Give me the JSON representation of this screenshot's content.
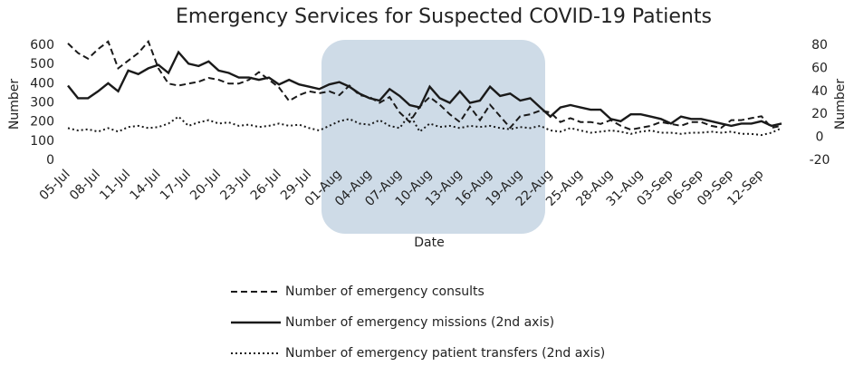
{
  "chart_data": {
    "type": "line",
    "title": "Emergency Services for Suspected COVID-19 Patients",
    "x_label": "Date",
    "y_label": "Number",
    "y2_label": "Number",
    "categories": [
      "05-Jul",
      null,
      null,
      "08-Jul",
      null,
      null,
      "11-Jul",
      null,
      null,
      "14-Jul",
      null,
      null,
      "17-Jul",
      null,
      null,
      "20-Jul",
      null,
      null,
      "23-Jul",
      null,
      null,
      "26-Jul",
      null,
      null,
      "29-Jul",
      null,
      null,
      "01-Aug",
      null,
      null,
      "04-Aug",
      null,
      null,
      "07-Aug",
      null,
      null,
      "10-Aug",
      null,
      null,
      "13-Aug",
      null,
      null,
      "16-Aug",
      null,
      null,
      "19-Aug",
      null,
      null,
      "22-Aug",
      null,
      null,
      "25-Aug",
      null,
      null,
      "28-Aug",
      null,
      null,
      "31-Aug",
      null,
      null,
      "03-Sep",
      null,
      null,
      "06-Sep",
      null,
      null,
      "09-Sep",
      null,
      null,
      "12-Sep",
      null,
      null
    ],
    "ylim": [
      0,
      600
    ],
    "yticks": [
      0,
      100,
      200,
      300,
      400,
      500,
      600
    ],
    "y2lim": [
      -20,
      80
    ],
    "y2ticks": [
      -20,
      0,
      20,
      40,
      60,
      80
    ],
    "series": [
      {
        "name": "Number of emergency consults",
        "color": "#1a1a1a",
        "style": "dashed",
        "values": [
          610,
          560,
          530,
          580,
          620,
          480,
          520,
          560,
          620,
          480,
          400,
          390,
          400,
          410,
          430,
          420,
          400,
          400,
          420,
          460,
          420,
          380,
          310,
          340,
          360,
          350,
          360,
          340,
          390,
          340,
          330,
          300,
          330,
          250,
          200,
          280,
          330,
          290,
          240,
          200,
          280,
          210,
          290,
          230,
          170,
          230,
          240,
          260,
          250,
          200,
          220,
          200,
          200,
          190,
          210,
          180,
          160,
          170,
          180,
          200,
          190,
          180,
          200,
          200,
          180,
          170,
          210,
          210,
          220,
          230,
          170,
          180
        ]
      },
      {
        "name": "Number of emergency missions (2nd axis)",
        "color": "#1a1a1a",
        "style": "solid",
        "axis": "y2",
        "values": [
          45,
          34,
          34,
          40,
          47,
          40,
          58,
          55,
          60,
          63,
          56,
          74,
          64,
          62,
          66,
          58,
          56,
          52,
          52,
          50,
          52,
          46,
          50,
          46,
          44,
          42,
          46,
          48,
          44,
          38,
          34,
          32,
          42,
          36,
          28,
          26,
          44,
          34,
          30,
          40,
          30,
          32,
          44,
          36,
          38,
          32,
          34,
          26,
          18,
          26,
          28,
          26,
          24,
          24,
          16,
          14,
          20,
          20,
          18,
          16,
          12,
          18,
          16,
          16,
          14,
          12,
          10,
          12,
          12,
          14,
          10,
          12
        ]
      },
      {
        "name": "Number of emergency patient transfers (2nd axis)",
        "color": "#1a1a1a",
        "style": "dotted",
        "axis": "y2",
        "values": [
          8,
          6,
          7,
          5,
          8,
          5,
          9,
          10,
          8,
          9,
          12,
          18,
          10,
          13,
          15,
          12,
          13,
          10,
          11,
          9,
          10,
          12,
          10,
          11,
          8,
          6,
          10,
          14,
          16,
          12,
          11,
          15,
          10,
          8,
          20,
          5,
          12,
          9,
          10,
          8,
          10,
          9,
          10,
          8,
          7,
          9,
          8,
          10,
          6,
          5,
          8,
          6,
          4,
          5,
          6,
          5,
          3,
          5,
          6,
          4,
          4,
          3,
          4,
          4,
          5,
          4,
          5,
          3,
          3,
          2,
          4,
          8
        ]
      }
    ]
  }
}
